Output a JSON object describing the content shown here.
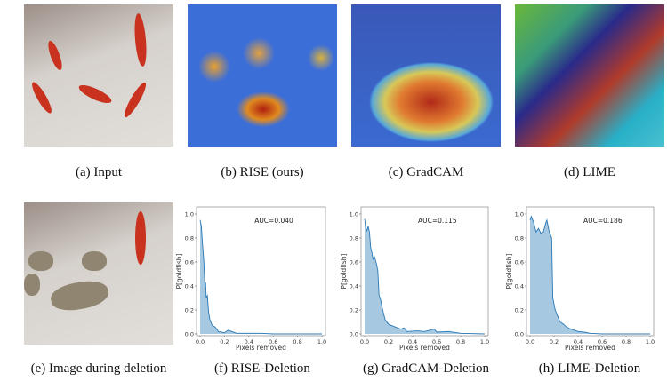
{
  "captions": {
    "a": "(a)  Input",
    "b": "(b)  RISE (ours)",
    "c": "(c)  GradCAM",
    "d": "(d)  LIME",
    "e": "(e)  Image during deletion",
    "f": "(f)  RISE-Deletion",
    "g": "(g)  GradCAM-Deletion",
    "h": "(h)  LIME-Deletion"
  },
  "colors": {
    "line": "#2a78b5",
    "fill": "#a6c8e0"
  },
  "chart_data": [
    {
      "type": "area",
      "xlabel": "Pixels removed",
      "ylabel": "P[goldfish]",
      "annotation": "AUC=0.040",
      "xlim": [
        0,
        1
      ],
      "ylim": [
        0,
        1
      ],
      "xticks": [
        "0.0",
        "0.2",
        "0.4",
        "0.6",
        "0.8",
        "1.0"
      ],
      "yticks": [
        "0.0",
        "0.2",
        "0.4",
        "0.6",
        "0.8",
        "1.0"
      ],
      "points": [
        [
          0,
          0.95
        ],
        [
          0.01,
          0.9
        ],
        [
          0.02,
          0.75
        ],
        [
          0.03,
          0.62
        ],
        [
          0.04,
          0.4
        ],
        [
          0.045,
          0.43
        ],
        [
          0.05,
          0.3
        ],
        [
          0.06,
          0.32
        ],
        [
          0.07,
          0.18
        ],
        [
          0.08,
          0.12
        ],
        [
          0.1,
          0.07
        ],
        [
          0.12,
          0.06
        ],
        [
          0.13,
          0.05
        ],
        [
          0.15,
          0.02
        ],
        [
          0.2,
          0.01
        ],
        [
          0.23,
          0.03
        ],
        [
          0.26,
          0.02
        ],
        [
          0.3,
          0.005
        ],
        [
          0.5,
          0.005
        ],
        [
          0.6,
          0
        ],
        [
          1,
          0
        ]
      ]
    },
    {
      "type": "area",
      "xlabel": "Pixels removed",
      "ylabel": "P[goldfish]",
      "annotation": "AUC=0.115",
      "xlim": [
        0,
        1
      ],
      "ylim": [
        0,
        1
      ],
      "xticks": [
        "0.0",
        "0.2",
        "0.4",
        "0.6",
        "0.8",
        "1.0"
      ],
      "yticks": [
        "0.0",
        "0.2",
        "0.4",
        "0.6",
        "0.8",
        "1.0"
      ],
      "points": [
        [
          0,
          0.96
        ],
        [
          0.01,
          0.88
        ],
        [
          0.02,
          0.86
        ],
        [
          0.03,
          0.9
        ],
        [
          0.04,
          0.85
        ],
        [
          0.05,
          0.72
        ],
        [
          0.06,
          0.68
        ],
        [
          0.07,
          0.62
        ],
        [
          0.08,
          0.65
        ],
        [
          0.1,
          0.58
        ],
        [
          0.11,
          0.52
        ],
        [
          0.12,
          0.32
        ],
        [
          0.13,
          0.3
        ],
        [
          0.15,
          0.2
        ],
        [
          0.17,
          0.12
        ],
        [
          0.2,
          0.08
        ],
        [
          0.25,
          0.06
        ],
        [
          0.3,
          0.04
        ],
        [
          0.33,
          0.05
        ],
        [
          0.35,
          0.02
        ],
        [
          0.44,
          0.025
        ],
        [
          0.5,
          0.02
        ],
        [
          0.58,
          0.04
        ],
        [
          0.6,
          0.015
        ],
        [
          0.7,
          0.02
        ],
        [
          0.8,
          0.005
        ],
        [
          1,
          0
        ]
      ]
    },
    {
      "type": "area",
      "xlabel": "Pixels removed",
      "ylabel": "P[goldfish]",
      "annotation": "AUC=0.186",
      "xlim": [
        0,
        1
      ],
      "ylim": [
        0,
        1
      ],
      "xticks": [
        "0.0",
        "0.2",
        "0.4",
        "0.6",
        "0.8",
        "1.0"
      ],
      "yticks": [
        "0.0",
        "0.2",
        "0.4",
        "0.6",
        "0.8",
        "1.0"
      ],
      "points": [
        [
          0,
          0.95
        ],
        [
          0.01,
          0.98
        ],
        [
          0.03,
          0.93
        ],
        [
          0.05,
          0.85
        ],
        [
          0.07,
          0.88
        ],
        [
          0.09,
          0.84
        ],
        [
          0.11,
          0.85
        ],
        [
          0.13,
          0.92
        ],
        [
          0.14,
          0.95
        ],
        [
          0.16,
          0.85
        ],
        [
          0.18,
          0.8
        ],
        [
          0.19,
          0.3
        ],
        [
          0.21,
          0.2
        ],
        [
          0.23,
          0.15
        ],
        [
          0.25,
          0.1
        ],
        [
          0.28,
          0.08
        ],
        [
          0.3,
          0.06
        ],
        [
          0.34,
          0.04
        ],
        [
          0.4,
          0.02
        ],
        [
          0.45,
          0.015
        ],
        [
          0.5,
          0.005
        ],
        [
          0.6,
          0
        ],
        [
          1,
          0
        ]
      ]
    }
  ]
}
